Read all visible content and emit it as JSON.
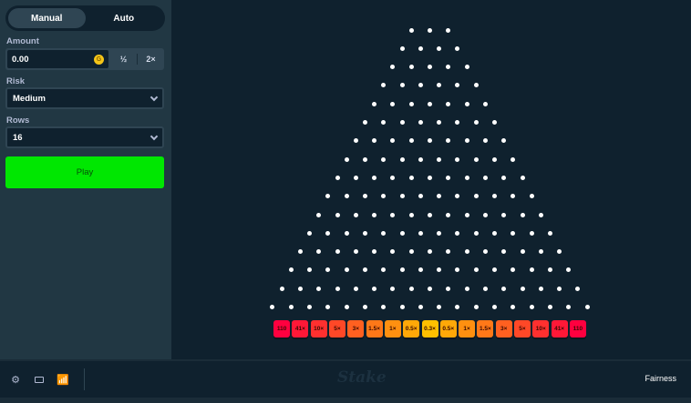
{
  "sidebar": {
    "tabs": [
      {
        "label": "Manual",
        "active": true
      },
      {
        "label": "Auto",
        "active": false
      }
    ],
    "amount": {
      "label": "Amount",
      "value": "0.00",
      "currency_icon": "G",
      "half_label": "½",
      "double_label": "2×"
    },
    "risk": {
      "label": "Risk",
      "value": "Medium"
    },
    "rows": {
      "label": "Rows",
      "value": "16"
    },
    "play_label": "Play",
    "play_color": "#00e701"
  },
  "board": {
    "rows": 16,
    "multipliers": [
      "110",
      "41×",
      "10×",
      "5×",
      "3×",
      "1.5×",
      "1×",
      "0.5×",
      "0.3×",
      "0.5×",
      "1×",
      "1.5×",
      "3×",
      "5×",
      "10×",
      "41×",
      "110"
    ],
    "edge_color": "#ff003f",
    "center_color": "#ffc000"
  },
  "bottom": {
    "icons": [
      "settings-icon",
      "theatre-mode-icon",
      "stats-icon"
    ],
    "logo": "Stake",
    "fairness_label": "Fairness"
  }
}
